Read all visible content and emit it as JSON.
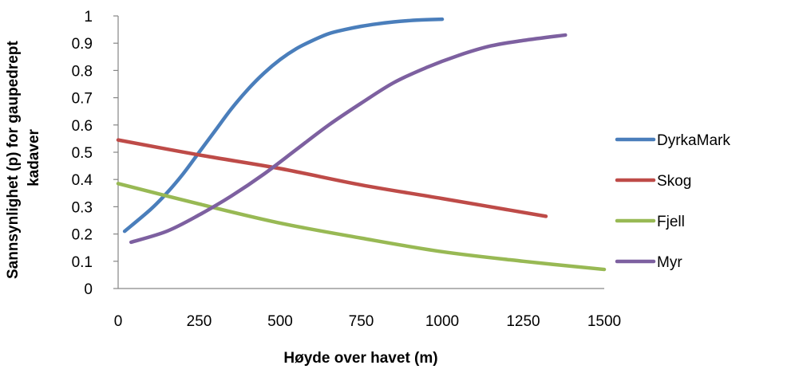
{
  "chart_data": {
    "type": "line",
    "xlabel": "Høyde over havet (m)",
    "ylabel_lines": [
      "Sannsynlighet (p) for gaupedrept",
      "kadaver"
    ],
    "xlim": [
      0,
      1500
    ],
    "ylim": [
      0,
      1
    ],
    "x_ticks": [
      0,
      250,
      500,
      750,
      1000,
      1250,
      1500
    ],
    "y_ticks": [
      0,
      0.1,
      0.2,
      0.3,
      0.4,
      0.5,
      0.6,
      0.7,
      0.8,
      0.9,
      1
    ],
    "grid": false,
    "legend_position": "right",
    "series": [
      {
        "name": "DyrkaMark",
        "color": "#4a7ebb",
        "x": [
          20,
          100,
          150,
          200,
          250,
          300,
          350,
          400,
          450,
          500,
          550,
          600,
          650,
          700,
          750,
          800,
          850,
          900,
          950,
          1000
        ],
        "y": [
          0.21,
          0.29,
          0.35,
          0.42,
          0.5,
          0.58,
          0.66,
          0.73,
          0.79,
          0.84,
          0.88,
          0.91,
          0.935,
          0.95,
          0.962,
          0.971,
          0.978,
          0.983,
          0.986,
          0.988
        ]
      },
      {
        "name": "Skog",
        "color": "#be4b48",
        "x": [
          0,
          250,
          500,
          750,
          1000,
          1320
        ],
        "y": [
          0.545,
          0.49,
          0.44,
          0.38,
          0.33,
          0.265
        ]
      },
      {
        "name": "Fjell",
        "color": "#98b954",
        "x": [
          0,
          250,
          500,
          750,
          1000,
          1250,
          1500
        ],
        "y": [
          0.385,
          0.31,
          0.24,
          0.185,
          0.135,
          0.1,
          0.07
        ]
      },
      {
        "name": "Myr",
        "color": "#7d60a0",
        "x": [
          40,
          150,
          250,
          350,
          450,
          550,
          650,
          750,
          850,
          950,
          1050,
          1150,
          1250,
          1380
        ],
        "y": [
          0.17,
          0.21,
          0.27,
          0.34,
          0.42,
          0.51,
          0.6,
          0.68,
          0.755,
          0.81,
          0.855,
          0.89,
          0.91,
          0.93
        ]
      }
    ]
  }
}
